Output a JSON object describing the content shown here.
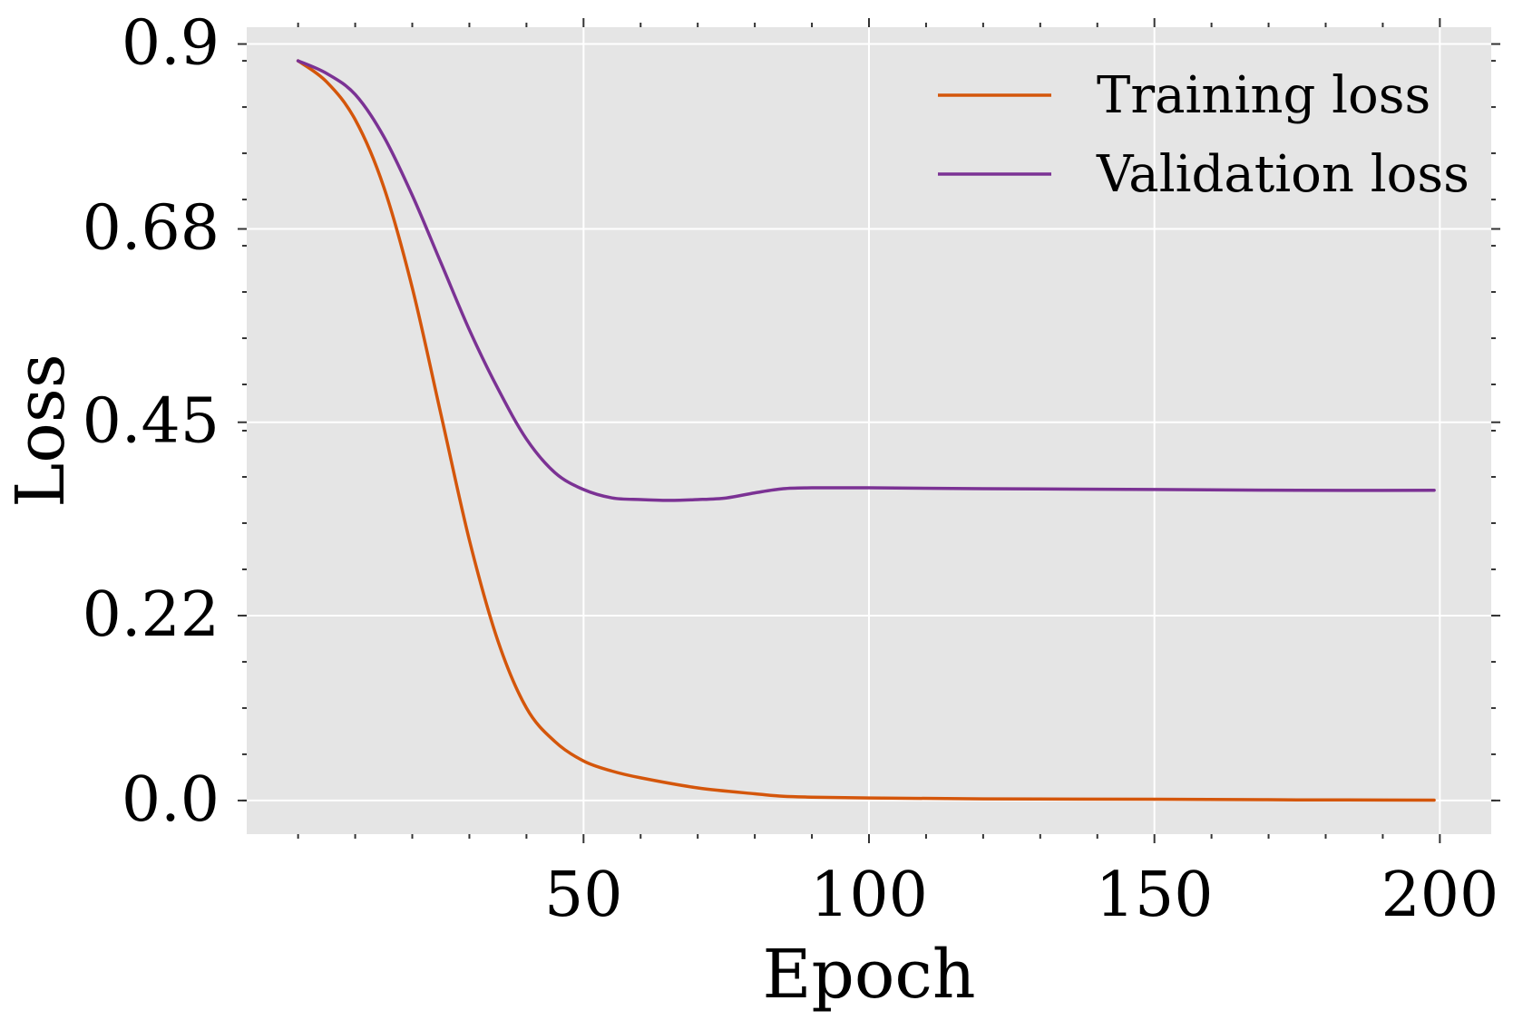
{
  "chart_data": {
    "type": "line",
    "xlabel": "Epoch",
    "ylabel": "Loss",
    "xlim": [
      -9,
      209
    ],
    "ylim": [
      -0.04,
      0.92
    ],
    "xticks": [
      50,
      100,
      150,
      200
    ],
    "xtick_labels": [
      "50",
      "100",
      "150",
      "200"
    ],
    "yticks": [
      0.0,
      0.22,
      0.45,
      0.68,
      0.9
    ],
    "ytick_labels": [
      "0.0",
      "0.22",
      "0.45",
      "0.68",
      "0.9"
    ],
    "grid": true,
    "legend_position": "top-right",
    "series": [
      {
        "name": "Training loss",
        "color": "#d4560b",
        "x": [
          0,
          5,
          10,
          15,
          20,
          25,
          30,
          35,
          40,
          45,
          50,
          55,
          60,
          70,
          80,
          85,
          90,
          100,
          120,
          150,
          175,
          199
        ],
        "y": [
          0.88,
          0.855,
          0.81,
          0.73,
          0.61,
          0.46,
          0.31,
          0.19,
          0.11,
          0.07,
          0.047,
          0.035,
          0.027,
          0.015,
          0.008,
          0.005,
          0.004,
          0.003,
          0.002,
          0.0015,
          0.0008,
          0.0005
        ]
      },
      {
        "name": "Validation loss",
        "color": "#7b3294",
        "x": [
          0,
          5,
          10,
          15,
          20,
          25,
          30,
          35,
          40,
          45,
          50,
          55,
          60,
          65,
          70,
          75,
          80,
          85,
          90,
          95,
          100,
          120,
          150,
          175,
          199
        ],
        "y": [
          0.88,
          0.865,
          0.84,
          0.79,
          0.72,
          0.64,
          0.56,
          0.49,
          0.43,
          0.39,
          0.37,
          0.36,
          0.358,
          0.357,
          0.358,
          0.36,
          0.366,
          0.371,
          0.372,
          0.372,
          0.372,
          0.371,
          0.37,
          0.369,
          0.369
        ]
      }
    ]
  }
}
